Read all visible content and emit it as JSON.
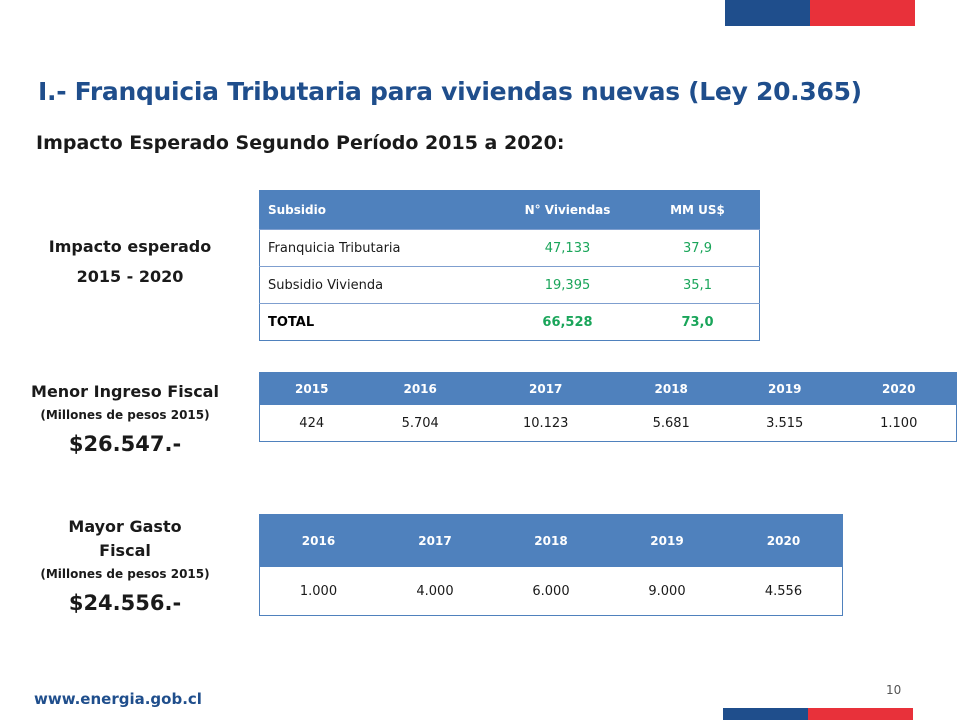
{
  "slide": {
    "title": "I.- Franquicia Tributaria para viviendas nuevas (Ley 20.365)",
    "subtitle": "Impacto Esperado Segundo Período 2015 a 2020:",
    "page_number": "10",
    "footer_url": "www.energia.gob.cl",
    "colors": {
      "brand_blue": "#1f4e8c",
      "brand_red": "#e8313a",
      "table_header": "#4f81bd",
      "value_green": "#1aa55a"
    }
  },
  "impact": {
    "label_line1": "Impacto esperado",
    "label_line2": "2015 - 2020",
    "headers": [
      "Subsidio",
      "N° Viviendas",
      "MM US$"
    ],
    "rows": [
      [
        "Franquicia Tributaria",
        "47,133",
        "37,9"
      ],
      [
        "Subsidio Vivienda",
        "19,395",
        "35,1"
      ],
      [
        "TOTAL",
        "66,528",
        "73,0"
      ]
    ]
  },
  "income": {
    "label": "Menor Ingreso Fiscal",
    "unit": "(Millones de pesos 2015)",
    "amount": "$26.547.-",
    "years": [
      "2015",
      "2016",
      "2017",
      "2018",
      "2019",
      "2020"
    ],
    "values": [
      "424",
      "5.704",
      "10.123",
      "5.681",
      "3.515",
      "1.100"
    ]
  },
  "spending": {
    "label_line1": "Mayor Gasto",
    "label_line2": "Fiscal",
    "unit": "(Millones de pesos 2015)",
    "amount": "$24.556.-",
    "years": [
      "2016",
      "2017",
      "2018",
      "2019",
      "2020"
    ],
    "values": [
      "1.000",
      "4.000",
      "6.000",
      "9.000",
      "4.556"
    ]
  }
}
